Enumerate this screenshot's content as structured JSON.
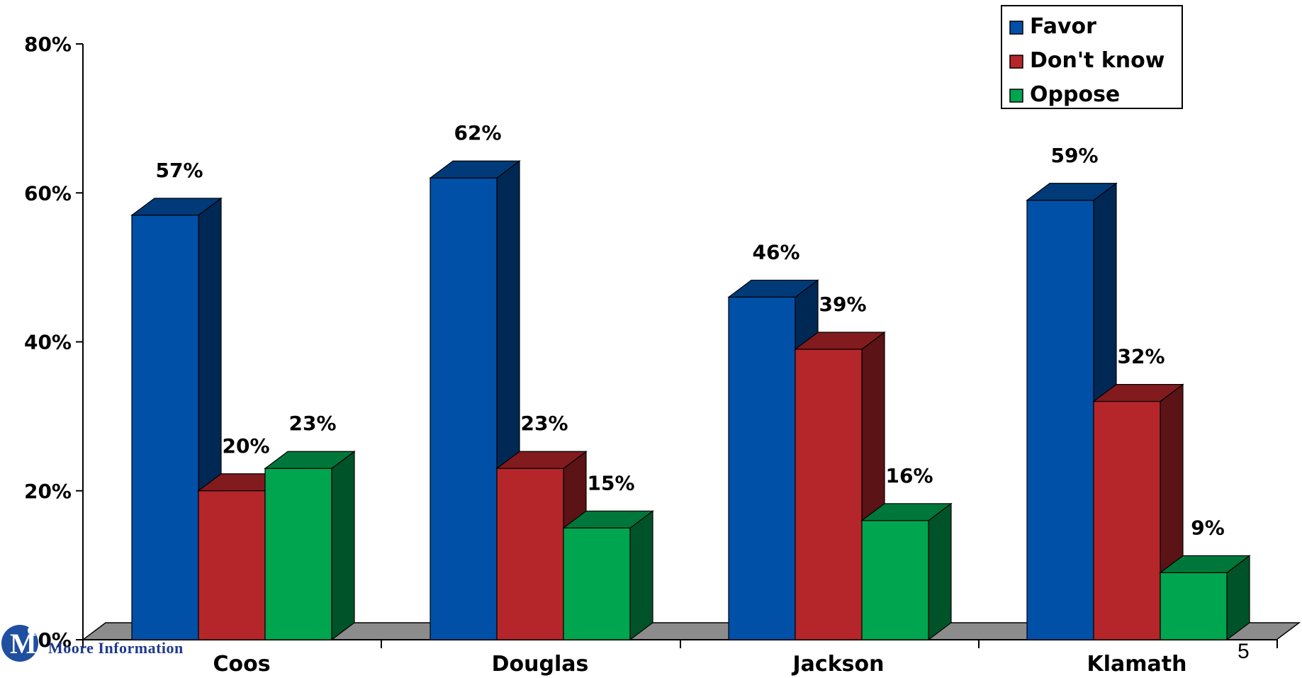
{
  "chart_data": {
    "type": "bar",
    "categories": [
      "Coos",
      "Douglas",
      "Jackson",
      "Klamath"
    ],
    "series": [
      {
        "name": "Favor",
        "values": [
          57,
          62,
          46,
          59
        ],
        "color": "#0050a8"
      },
      {
        "name": "Don't know",
        "values": [
          20,
          23,
          39,
          32
        ],
        "color": "#b5262a"
      },
      {
        "name": "Oppose",
        "values": [
          23,
          15,
          16,
          9
        ],
        "color": "#00a550"
      }
    ],
    "value_labels": [
      [
        "57%",
        "62%",
        "46%",
        "59%"
      ],
      [
        "20%",
        "23%",
        "39%",
        "32%"
      ],
      [
        "23%",
        "15%",
        "16%",
        "9%"
      ]
    ],
    "ylim": [
      0,
      80
    ],
    "yticks": [
      0,
      20,
      40,
      60,
      80
    ],
    "ytick_labels": [
      "0%",
      "20%",
      "40%",
      "60%",
      "80%"
    ],
    "legend_position": "top-right",
    "style": "3d-clustered"
  },
  "footer": {
    "logo_text": "Moore Information",
    "page_number": "5"
  }
}
